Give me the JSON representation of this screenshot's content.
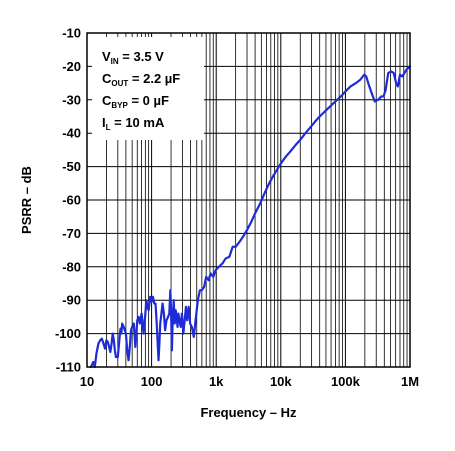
{
  "chart_data": {
    "type": "line",
    "title": "",
    "xlabel": "Frequency – Hz",
    "ylabel": "PSRR – dB",
    "xscale": "log",
    "xlim": [
      10,
      1000000
    ],
    "ylim": [
      -110,
      -10
    ],
    "grid": true,
    "x_tick_labels": [
      "10",
      "100",
      "1k",
      "10k",
      "100k",
      "1M"
    ],
    "y_tick_labels": [
      "-10",
      "-20",
      "-30",
      "-40",
      "-50",
      "-60",
      "-70",
      "-80",
      "-90",
      "-100",
      "-110"
    ],
    "annotations": [
      {
        "main": "V",
        "sub": "IN",
        "rest": " =  3.5 V"
      },
      {
        "main": "C",
        "sub": "OUT",
        "rest": " = 2.2 µF"
      },
      {
        "main": "C",
        "sub": "BYP",
        "rest": " = 0 µF"
      },
      {
        "main": "I",
        "sub": "L",
        "rest": " = 10 mA"
      }
    ],
    "series": [
      {
        "color": "#1f2bd6",
        "points": [
          [
            11.5,
            -110
          ],
          [
            12.5,
            -108.5
          ],
          [
            13.2,
            -110
          ],
          [
            14,
            -106
          ],
          [
            15,
            -103
          ],
          [
            16,
            -102
          ],
          [
            17,
            -101.5
          ],
          [
            18,
            -103
          ],
          [
            19,
            -104.5
          ],
          [
            20,
            -102
          ],
          [
            21,
            -102.5
          ],
          [
            22,
            -104
          ],
          [
            23,
            -105.5
          ],
          [
            24,
            -103
          ],
          [
            25,
            -100
          ],
          [
            26,
            -102
          ],
          [
            27,
            -105
          ],
          [
            28,
            -107
          ],
          [
            30,
            -107
          ],
          [
            32,
            -101
          ],
          [
            33,
            -98.5
          ],
          [
            34,
            -100
          ],
          [
            35,
            -97
          ],
          [
            37,
            -98
          ],
          [
            40,
            -100
          ],
          [
            42,
            -105
          ],
          [
            44,
            -108
          ],
          [
            46,
            -104
          ],
          [
            48,
            -99
          ],
          [
            50,
            -98
          ],
          [
            53,
            -97
          ],
          [
            56,
            -104
          ],
          [
            58,
            -100
          ],
          [
            60,
            -96
          ],
          [
            63,
            -95
          ],
          [
            66,
            -97
          ],
          [
            70,
            -94
          ],
          [
            72,
            -96
          ],
          [
            75,
            -100
          ],
          [
            78,
            -97
          ],
          [
            80,
            -94
          ],
          [
            83,
            -90
          ],
          [
            86,
            -92
          ],
          [
            90,
            -93
          ],
          [
            95,
            -89
          ],
          [
            100,
            -90.5
          ],
          [
            105,
            -89
          ],
          [
            110,
            -91
          ],
          [
            115,
            -91
          ],
          [
            120,
            -97
          ],
          [
            125,
            -104
          ],
          [
            128,
            -108
          ],
          [
            132,
            -103
          ],
          [
            136,
            -97
          ],
          [
            140,
            -95
          ],
          [
            148,
            -91
          ],
          [
            155,
            -94
          ],
          [
            162,
            -99
          ],
          [
            170,
            -96
          ],
          [
            180,
            -95
          ],
          [
            188,
            -94
          ],
          [
            195,
            -87
          ],
          [
            200,
            -93
          ],
          [
            206,
            -105
          ],
          [
            212,
            -96
          ],
          [
            220,
            -90
          ],
          [
            228,
            -97
          ],
          [
            236,
            -93
          ],
          [
            244,
            -95
          ],
          [
            252,
            -98
          ],
          [
            260,
            -94
          ],
          [
            270,
            -96
          ],
          [
            282,
            -98
          ],
          [
            295,
            -94
          ],
          [
            310,
            -100
          ],
          [
            325,
            -96
          ],
          [
            340,
            -92
          ],
          [
            355,
            -96
          ],
          [
            375,
            -92
          ],
          [
            395,
            -97
          ],
          [
            420,
            -98
          ],
          [
            450,
            -101
          ],
          [
            480,
            -96
          ],
          [
            520,
            -90
          ],
          [
            560,
            -87
          ],
          [
            600,
            -87
          ],
          [
            650,
            -86
          ],
          [
            700,
            -83
          ],
          [
            760,
            -84
          ],
          [
            820,
            -82
          ],
          [
            900,
            -83
          ],
          [
            980,
            -81
          ],
          [
            1100,
            -80
          ],
          [
            1250,
            -79
          ],
          [
            1400,
            -77.5
          ],
          [
            1600,
            -77
          ],
          [
            1800,
            -74
          ],
          [
            2000,
            -74
          ],
          [
            2300,
            -72.5
          ],
          [
            2600,
            -71
          ],
          [
            3000,
            -69
          ],
          [
            3500,
            -66.5
          ],
          [
            4000,
            -64
          ],
          [
            4800,
            -61
          ],
          [
            5600,
            -58
          ],
          [
            6600,
            -55
          ],
          [
            7800,
            -52.5
          ],
          [
            9000,
            -50.5
          ],
          [
            10500,
            -48.5
          ],
          [
            12000,
            -47
          ],
          [
            14000,
            -45.5
          ],
          [
            17000,
            -43.5
          ],
          [
            20000,
            -42
          ],
          [
            24000,
            -40
          ],
          [
            28000,
            -38.5
          ],
          [
            34000,
            -36.5
          ],
          [
            40000,
            -35
          ],
          [
            48000,
            -33.5
          ],
          [
            58000,
            -32
          ],
          [
            70000,
            -30.5
          ],
          [
            85000,
            -29
          ],
          [
            100000,
            -27.5
          ],
          [
            120000,
            -26
          ],
          [
            145000,
            -25
          ],
          [
            170000,
            -24
          ],
          [
            195000,
            -22.5
          ],
          [
            210000,
            -23
          ],
          [
            230000,
            -25.5
          ],
          [
            255000,
            -28
          ],
          [
            285000,
            -30.5
          ],
          [
            320000,
            -30
          ],
          [
            360000,
            -29
          ],
          [
            390000,
            -29
          ],
          [
            420000,
            -27
          ],
          [
            460000,
            -22
          ],
          [
            510000,
            -21.5
          ],
          [
            560000,
            -22
          ],
          [
            610000,
            -25
          ],
          [
            650000,
            -26
          ],
          [
            700000,
            -22.5
          ],
          [
            760000,
            -23
          ],
          [
            820000,
            -22
          ],
          [
            880000,
            -21
          ],
          [
            940000,
            -20.5
          ],
          [
            1000000,
            -20
          ]
        ]
      }
    ]
  }
}
